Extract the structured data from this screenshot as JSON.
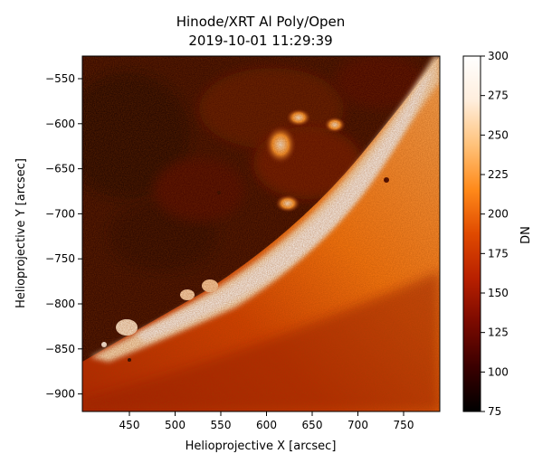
{
  "title_line1": "Hinode/XRT Al Poly/Open",
  "title_line2": "2019-10-01 11:29:39",
  "xlabel": "Helioprojective X [arcsec]",
  "ylabel": "Helioprojective Y [arcsec]",
  "colorbar_label": "DN",
  "x_ticks": [
    "450",
    "500",
    "550",
    "600",
    "650",
    "700",
    "750"
  ],
  "y_ticks": [
    "−550",
    "−600",
    "−650",
    "−700",
    "−750",
    "−800",
    "−850",
    "−900"
  ],
  "cbar_ticks": [
    "75",
    "100",
    "125",
    "150",
    "175",
    "200",
    "225",
    "250",
    "275",
    "300"
  ],
  "colormap": [
    "#000000",
    "#3a0000",
    "#7a0a00",
    "#b82000",
    "#e04a00",
    "#ff8a1a",
    "#ffc27a",
    "#ffeedd",
    "#ffffff"
  ]
}
